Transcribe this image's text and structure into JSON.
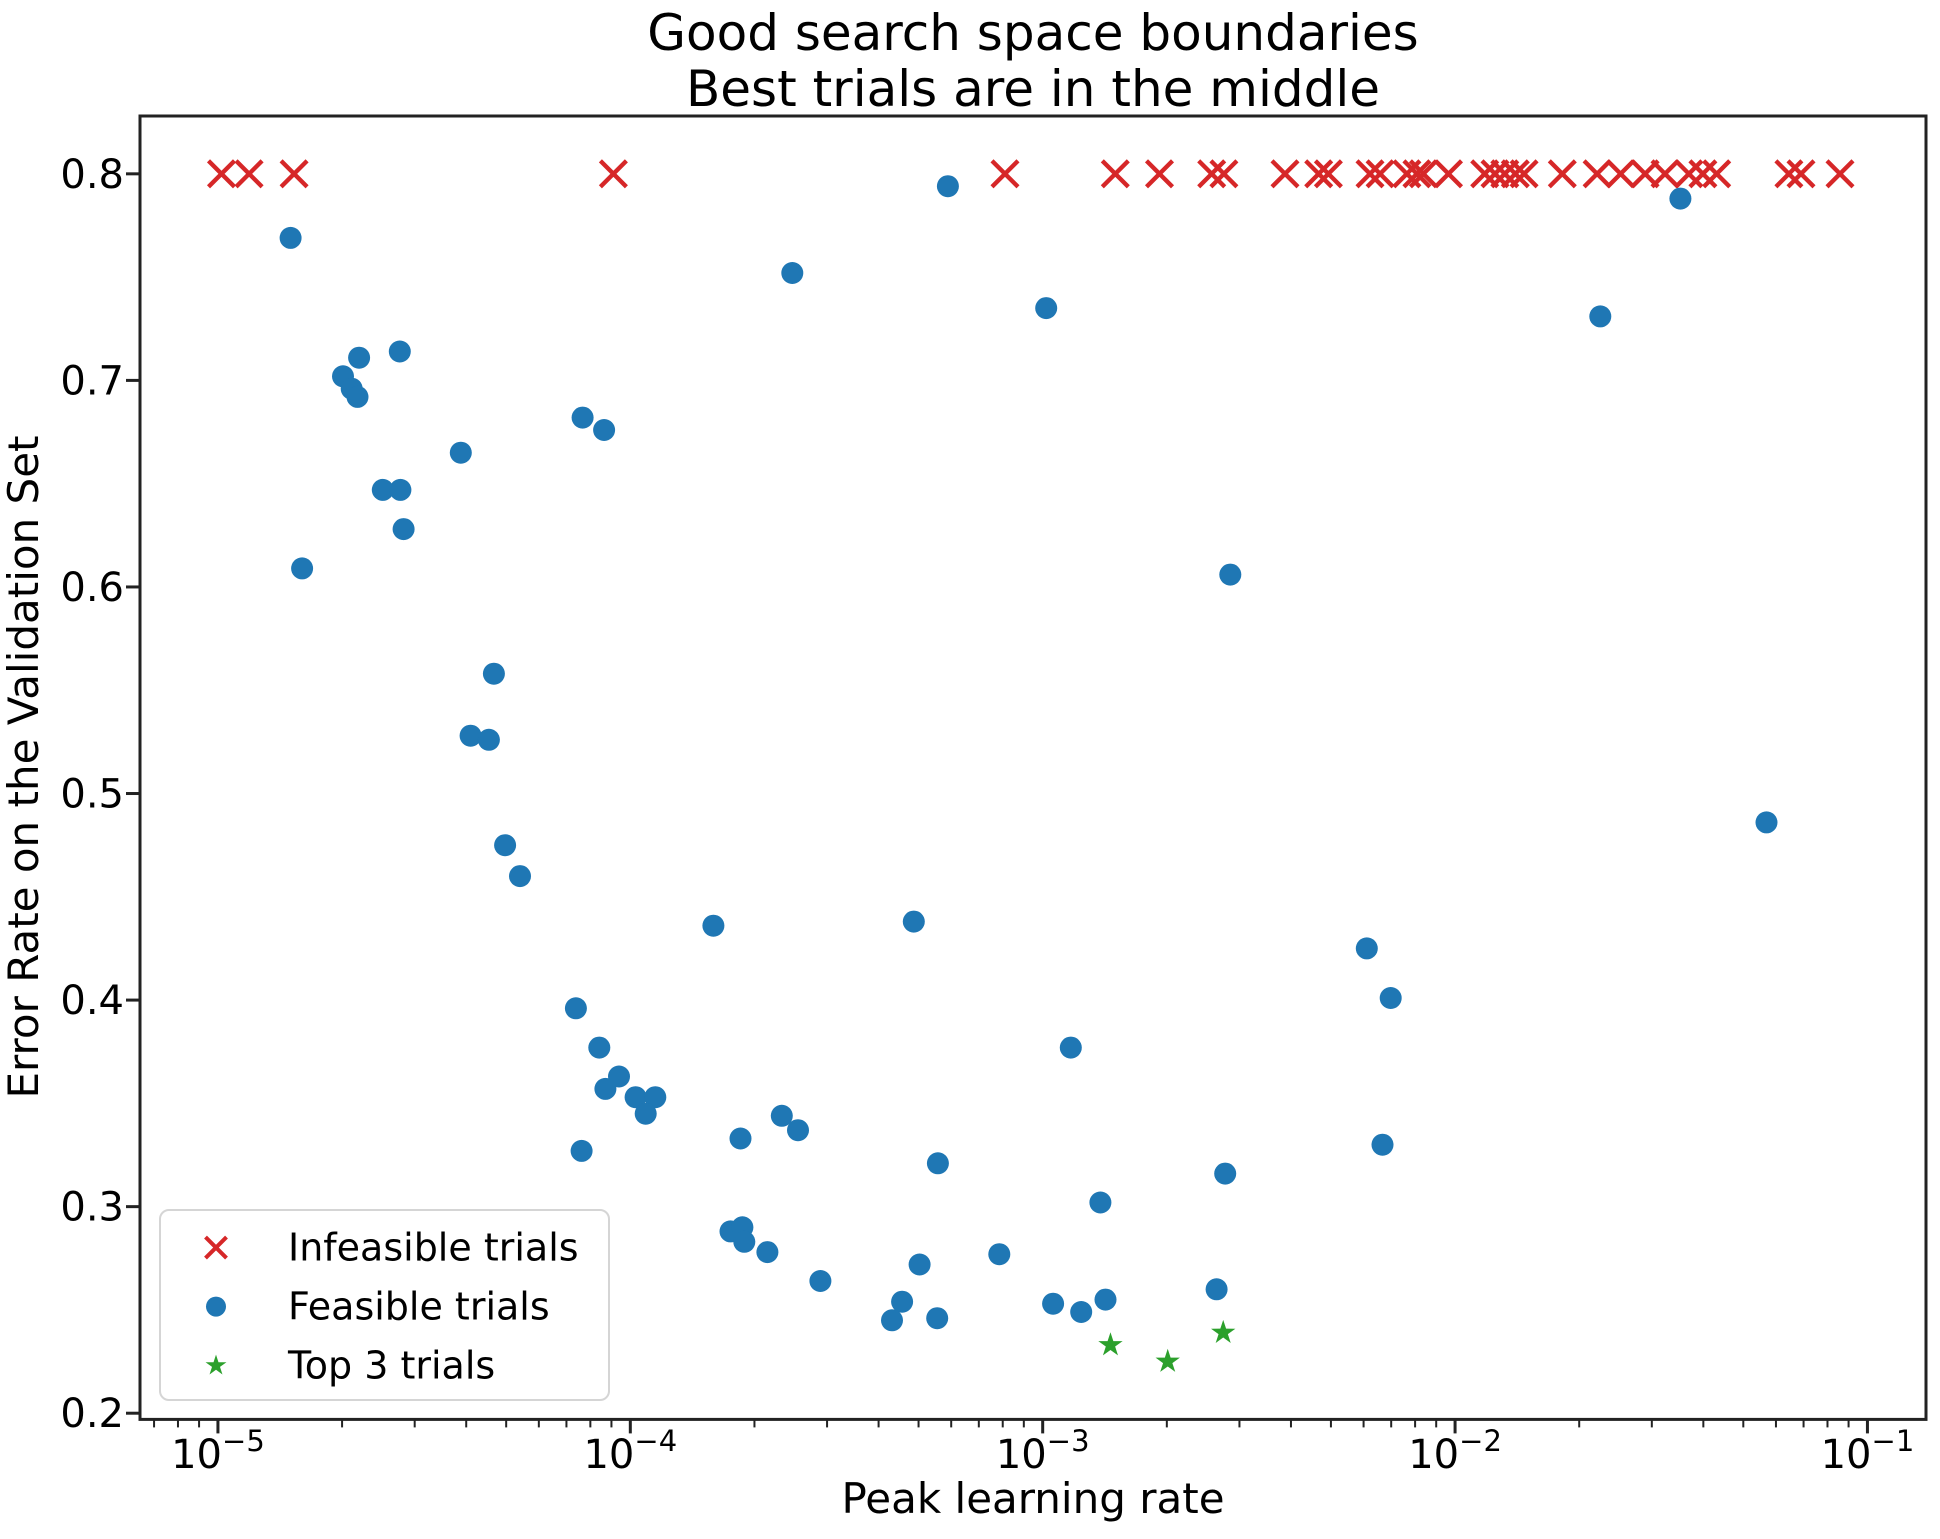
{
  "chart_data": {
    "type": "scatter",
    "title_line1": "Good search space boundaries",
    "title_line2": "Best trials are in the middle",
    "xlabel": "Peak learning rate",
    "ylabel": "Error Rate on the Validation Set",
    "x_scale": "log",
    "xlim_log10": [
      -5.189,
      -0.858
    ],
    "ylim": [
      0.197,
      0.828
    ],
    "x_major_ticks_exp": [
      -5,
      -4,
      -3,
      -2,
      -1
    ],
    "y_ticks": [
      "0.2",
      "0.3",
      "0.4",
      "0.5",
      "0.6",
      "0.7",
      "0.8"
    ],
    "grid": false,
    "legend_position": "lower left",
    "series": [
      {
        "name": "Infeasible trials",
        "marker": "x",
        "color": "#d62728",
        "y_const": 0.8,
        "x": [
          1.02e-05,
          1.19e-05,
          1.53e-05,
          9.1e-05,
          0.00081,
          0.0015,
          0.00192,
          0.00257,
          0.00275,
          0.00387,
          0.00467,
          0.00493,
          0.00622,
          0.00658,
          0.00764,
          0.00808,
          0.00838,
          0.00964,
          0.0118,
          0.0125,
          0.0132,
          0.014,
          0.0147,
          0.0182,
          0.0221,
          0.0252,
          0.0289,
          0.0323,
          0.0369,
          0.0399,
          0.0431,
          0.0645,
          0.069,
          0.0858
        ]
      },
      {
        "name": "Feasible trials",
        "marker": "circle",
        "color": "#1f77b4",
        "points": [
          [
            1.5e-05,
            0.769
          ],
          [
            2.2e-05,
            0.711
          ],
          [
            2.76e-05,
            0.714
          ],
          [
            2.01e-05,
            0.702
          ],
          [
            2.11e-05,
            0.696
          ],
          [
            2.18e-05,
            0.692
          ],
          [
            7.66e-05,
            0.682
          ],
          [
            8.64e-05,
            0.676
          ],
          [
            3.88e-05,
            0.665
          ],
          [
            2.51e-05,
            0.647
          ],
          [
            2.77e-05,
            0.647
          ],
          [
            2.82e-05,
            0.628
          ],
          [
            1.6e-05,
            0.609
          ],
          [
            4.67e-05,
            0.558
          ],
          [
            4.1e-05,
            0.528
          ],
          [
            4.54e-05,
            0.526
          ],
          [
            4.97e-05,
            0.475
          ],
          [
            5.4e-05,
            0.46
          ],
          [
            0.000159,
            0.436
          ],
          [
            0.000487,
            0.438
          ],
          [
            7.38e-05,
            0.396
          ],
          [
            8.41e-05,
            0.377
          ],
          [
            9.39e-05,
            0.363
          ],
          [
            8.7e-05,
            0.357
          ],
          [
            0.000103,
            0.353
          ],
          [
            0.000115,
            0.353
          ],
          [
            0.000109,
            0.345
          ],
          [
            7.62e-05,
            0.327
          ],
          [
            0.000185,
            0.333
          ],
          [
            0.000233,
            0.344
          ],
          [
            0.000255,
            0.337
          ],
          [
            0.000557,
            0.321
          ],
          [
            0.000175,
            0.288
          ],
          [
            0.000187,
            0.29
          ],
          [
            0.000189,
            0.283
          ],
          [
            0.000215,
            0.278
          ],
          [
            0.000289,
            0.264
          ],
          [
            0.000503,
            0.272
          ],
          [
            0.000456,
            0.254
          ],
          [
            0.000431,
            0.245
          ],
          [
            0.000555,
            0.246
          ],
          [
            0.000785,
            0.277
          ],
          [
            0.00138,
            0.302
          ],
          [
            0.00106,
            0.253
          ],
          [
            0.00124,
            0.249
          ],
          [
            0.00142,
            0.255
          ],
          [
            0.00264,
            0.26
          ],
          [
            0.00277,
            0.316
          ],
          [
            0.00285,
            0.606
          ],
          [
            0.00611,
            0.425
          ],
          [
            0.00698,
            0.401
          ],
          [
            0.00667,
            0.33
          ],
          [
            0.00117,
            0.377
          ],
          [
            0.000589,
            0.794
          ],
          [
            0.000247,
            0.752
          ],
          [
            0.00102,
            0.735
          ],
          [
            0.0225,
            0.731
          ],
          [
            0.0352,
            0.788
          ],
          [
            0.0569,
            0.486
          ]
        ]
      },
      {
        "name": "Top 3 trials",
        "marker": "star",
        "color": "#2ca02c",
        "points": [
          [
            0.00146,
            0.233
          ],
          [
            0.00201,
            0.225
          ],
          [
            0.00274,
            0.239
          ]
        ]
      }
    ],
    "legend_items": [
      {
        "label": "Infeasible trials"
      },
      {
        "label": "Feasible trials"
      },
      {
        "label": "Top 3 trials"
      }
    ]
  }
}
